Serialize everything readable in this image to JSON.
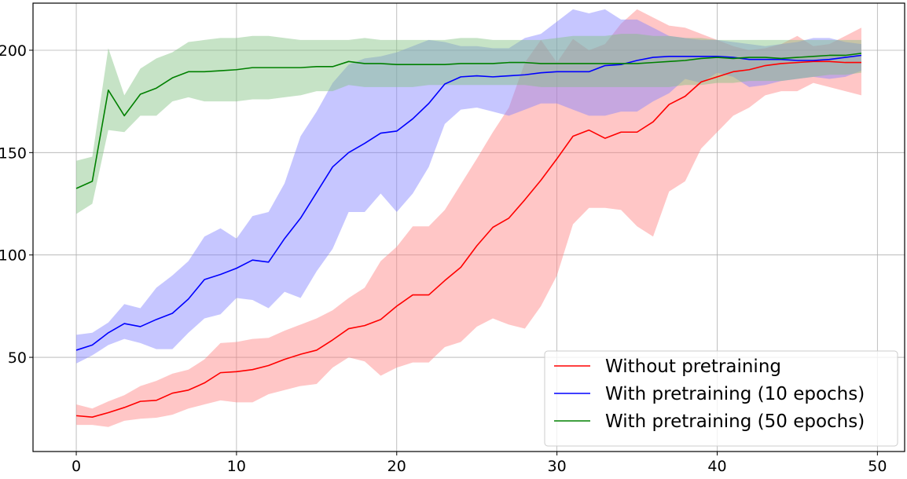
{
  "chart_data": {
    "type": "line",
    "title": "",
    "xlabel": "",
    "ylabel": "",
    "xlim": [
      -2.7,
      51.7
    ],
    "ylim": [
      4,
      223
    ],
    "xticks": [
      0,
      10,
      20,
      30,
      40,
      50
    ],
    "yticks": [
      50,
      100,
      150,
      200
    ],
    "grid": true,
    "legend_position": "lower-right",
    "x": [
      0,
      1,
      2,
      3,
      4,
      5,
      6,
      7,
      8,
      9,
      10,
      11,
      12,
      13,
      14,
      15,
      16,
      17,
      18,
      19,
      20,
      21,
      22,
      23,
      24,
      25,
      26,
      27,
      28,
      29,
      30,
      31,
      32,
      33,
      34,
      35,
      36,
      37,
      38,
      39,
      40,
      41,
      42,
      43,
      44,
      45,
      46,
      47,
      48,
      49
    ],
    "series": [
      {
        "name": "Without pretraining",
        "color": "#ff0000",
        "band_color": "#ff8080",
        "values": [
          21.5,
          20.8,
          23,
          25.5,
          28.5,
          29,
          32.5,
          34,
          37.5,
          42.5,
          43,
          44,
          46,
          49,
          51.5,
          53.5,
          58.5,
          64,
          65.5,
          68.5,
          75,
          80.5,
          80.5,
          87.5,
          94,
          104.5,
          113.5,
          118,
          127,
          136.5,
          147,
          158,
          161,
          157,
          160,
          160,
          165,
          173.5,
          177.5,
          184.5,
          187,
          189.5,
          190.5,
          192.5,
          193.5,
          194,
          194.5,
          194.5,
          194,
          194
        ],
        "upper": [
          27,
          25,
          28.5,
          31.5,
          36,
          38.5,
          42,
          44,
          49,
          57,
          57.5,
          59,
          59.5,
          63,
          66,
          69,
          73,
          79,
          84,
          97,
          104,
          114,
          114,
          122,
          134.5,
          147,
          160,
          172,
          194,
          205,
          194,
          205.5,
          200,
          203,
          213,
          220,
          216,
          212,
          211,
          208,
          205,
          202,
          200,
          201,
          203,
          207,
          202,
          203,
          207,
          211
        ],
        "lower": [
          17,
          17,
          16,
          19,
          20,
          20.5,
          22,
          25,
          27,
          29,
          28,
          28,
          32,
          34,
          36,
          37,
          45,
          50,
          48,
          41,
          45,
          47.5,
          47.5,
          55,
          57.5,
          65,
          69,
          66,
          64,
          75,
          90,
          115,
          123,
          123,
          122,
          114,
          109,
          131,
          136,
          152,
          160,
          168,
          172,
          178,
          180,
          180,
          184,
          182,
          180,
          178
        ]
      },
      {
        "name": "With pretraining (10 epochs)",
        "color": "#0000ff",
        "band_color": "#8080ff",
        "values": [
          53.5,
          56,
          62,
          66.5,
          65,
          68.5,
          71.5,
          78.5,
          88,
          90.5,
          93.5,
          97.5,
          96.5,
          108,
          118,
          130.5,
          143,
          150,
          154.5,
          159.5,
          160.5,
          166.5,
          174,
          183.5,
          187,
          187.5,
          187,
          187.5,
          188,
          189,
          189.5,
          189.5,
          189.5,
          192.5,
          193,
          195,
          196.5,
          197,
          197,
          197,
          197,
          196.5,
          195.5,
          195.5,
          195.5,
          195,
          195,
          195.5,
          196.5,
          197.5
        ],
        "upper": [
          61,
          62,
          67,
          76,
          74,
          84,
          90,
          97,
          109,
          113,
          108,
          119,
          121,
          135,
          158,
          170,
          184,
          193,
          196,
          197,
          199,
          202,
          205,
          204,
          202,
          202,
          201,
          201,
          206,
          208,
          214,
          220,
          218,
          220,
          215,
          215,
          211,
          207,
          206,
          205,
          205,
          204,
          203,
          202,
          203,
          204,
          206,
          206,
          204,
          203
        ],
        "lower": [
          47,
          51,
          56,
          59,
          57,
          54,
          54,
          62,
          69,
          71,
          79,
          78,
          74,
          82,
          79,
          92,
          103,
          121,
          121,
          130,
          121,
          130,
          143,
          164,
          171,
          172,
          170,
          168,
          171,
          174,
          174,
          171,
          168,
          168,
          170,
          170,
          175,
          179,
          186,
          184,
          189,
          187,
          182,
          183,
          185,
          186,
          187,
          186,
          187,
          190
        ]
      },
      {
        "name": "With pretraining (50 epochs)",
        "color": "#008000",
        "band_color": "#80c080",
        "values": [
          132.5,
          136,
          180.5,
          168,
          178.5,
          181.5,
          186.5,
          189.5,
          189.5,
          190,
          190.5,
          191.5,
          191.5,
          191.5,
          191.5,
          192,
          192,
          194.5,
          193.5,
          193.5,
          193,
          193,
          193,
          193,
          193.5,
          193.5,
          193.5,
          194,
          194,
          193.5,
          193.5,
          193.5,
          193.5,
          193.5,
          193.5,
          193.5,
          194,
          194.5,
          195,
          196,
          196.5,
          196,
          196.5,
          196.5,
          196,
          196.5,
          197,
          197.5,
          197.5,
          198.5
        ],
        "upper": [
          146,
          148,
          201,
          178,
          191,
          196,
          199,
          204,
          205,
          206,
          206,
          207,
          207,
          206,
          205,
          205,
          205,
          205,
          206,
          205,
          205,
          205,
          205,
          205,
          206,
          206,
          205,
          205,
          205,
          205,
          206,
          207,
          207,
          207,
          208,
          208,
          207,
          207,
          206,
          206,
          205,
          205,
          205,
          205,
          205,
          205,
          205,
          205,
          205,
          205
        ],
        "lower": [
          120,
          125,
          161,
          160,
          168,
          168,
          175,
          177,
          175,
          175,
          175,
          176,
          176,
          177,
          178,
          180,
          180,
          183,
          182,
          182,
          182,
          182,
          183,
          183,
          183,
          183,
          183,
          183,
          183,
          182,
          182,
          182,
          182,
          182,
          182,
          182,
          182,
          182,
          183,
          183,
          184,
          184,
          185,
          185,
          185,
          186,
          187,
          188,
          188,
          189
        ]
      }
    ]
  }
}
